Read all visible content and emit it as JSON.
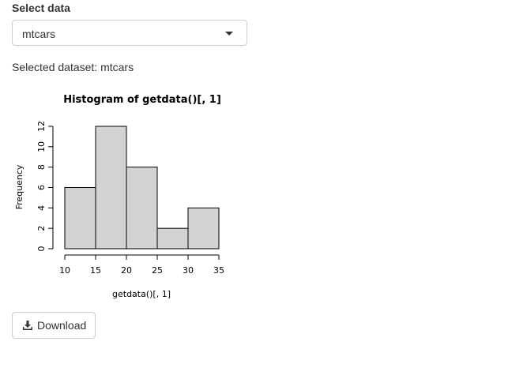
{
  "input": {
    "label": "Select data",
    "selected": "mtcars",
    "caret_icon": "caret-down-icon"
  },
  "output_text": "Selected dataset: mtcars",
  "chart_data": {
    "type": "bar",
    "title": "Histogram of getdata()[, 1]",
    "xlabel": "getdata()[, 1]",
    "ylabel": "Frequency",
    "bins": [
      [
        10,
        15
      ],
      [
        15,
        20
      ],
      [
        20,
        25
      ],
      [
        25,
        30
      ],
      [
        30,
        35
      ]
    ],
    "values": [
      6,
      12,
      8,
      2,
      4
    ],
    "xlim": [
      10,
      35
    ],
    "ylim": [
      0,
      12
    ],
    "xticks": [
      10,
      15,
      20,
      25,
      30,
      35
    ],
    "yticks": [
      0,
      2,
      4,
      6,
      8,
      10,
      12
    ],
    "bar_color": "#d3d3d3",
    "grid": false,
    "legend": "none"
  },
  "download": {
    "label": "Download",
    "icon": "download-icon"
  }
}
